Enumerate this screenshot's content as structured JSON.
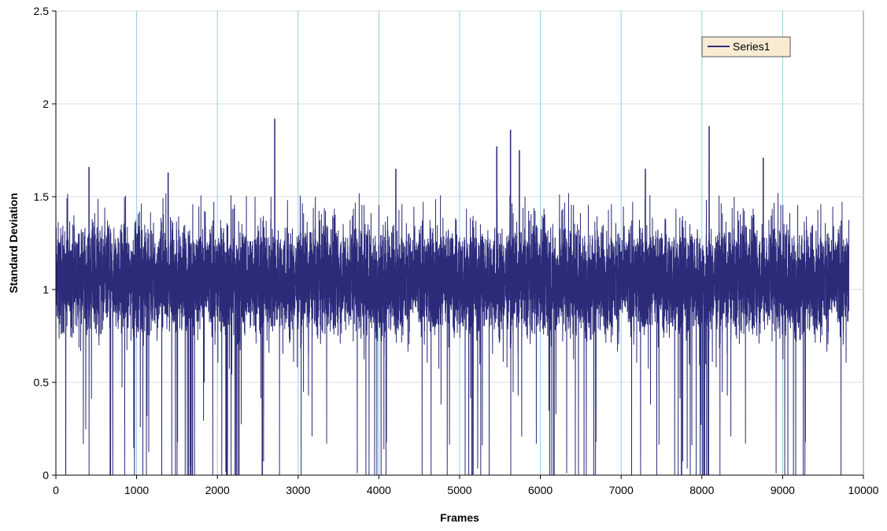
{
  "chart_data": {
    "type": "line",
    "title": "",
    "xlabel": "Frames",
    "ylabel": "Standard Deviation",
    "xlim": [
      0,
      10000
    ],
    "ylim": [
      0,
      2.5
    ],
    "x_ticks": [
      "0",
      "1000",
      "2000",
      "3000",
      "4000",
      "5000",
      "6000",
      "7000",
      "8000",
      "9000",
      "10000"
    ],
    "y_ticks": [
      "0",
      "0.5",
      "1",
      "1.5",
      "2",
      "2.5"
    ],
    "vertical_gridlines": true,
    "horizontal_gridlines": true,
    "legend_position": "top-right",
    "colors": {
      "series": "#2b2b7a",
      "vgrid": "#8fd0e0",
      "hgrid": "#dcdcdc",
      "legend_bg": "#f7ecd3"
    },
    "series": [
      {
        "name": "Series1",
        "x_range": [
          0,
          9820
        ],
        "num_points": 9820,
        "typical_band": [
          0.8,
          1.3
        ],
        "baseline_mean": 1.05,
        "upper_envelope_typical": 1.45,
        "peaks": [
          {
            "x": 410,
            "y": 1.66
          },
          {
            "x": 1390,
            "y": 1.63
          },
          {
            "x": 2710,
            "y": 1.92
          },
          {
            "x": 4210,
            "y": 1.65
          },
          {
            "x": 5460,
            "y": 1.77
          },
          {
            "x": 5630,
            "y": 1.86
          },
          {
            "x": 5740,
            "y": 1.75
          },
          {
            "x": 7300,
            "y": 1.65
          },
          {
            "x": 8090,
            "y": 1.88
          },
          {
            "x": 8760,
            "y": 1.71
          }
        ],
        "dense_zero_regions": [
          [
            1550,
            1720
          ],
          [
            2100,
            2300
          ],
          [
            4000,
            4100
          ],
          [
            5150,
            5300
          ],
          [
            6100,
            6200
          ],
          [
            7800,
            8100
          ]
        ]
      }
    ]
  }
}
